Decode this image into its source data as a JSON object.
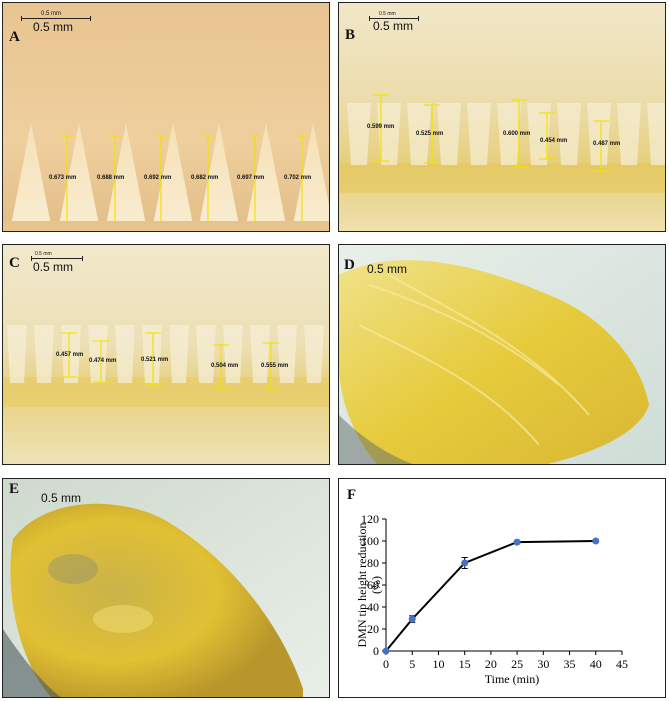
{
  "panels": {
    "A": {
      "letter": "A",
      "scale_small": "0.5 mm",
      "scale_big": "0.5 mm",
      "measurements": [
        "0.673 mm",
        "0.688 mm",
        "0.692 mm",
        "0.682 mm",
        "0.697 mm",
        "0.702 mm"
      ]
    },
    "B": {
      "letter": "B",
      "scale_small": "0.5 mm",
      "scale_big": "0.5 mm",
      "measurements": [
        "0.599 mm",
        "0.525 mm",
        "0.600 mm",
        "0.454 mm",
        "0.487 mm"
      ]
    },
    "C": {
      "letter": "C",
      "scale_small": "0.5 mm",
      "scale_big": "0.5 mm",
      "measurements": [
        "0.457 mm",
        "0.474 mm",
        "0.521 mm",
        "0.504 mm",
        "0.555 mm"
      ]
    },
    "D": {
      "letter": "D",
      "scale_big": "0.5 mm"
    },
    "E": {
      "letter": "E",
      "scale_big": "0.5 mm"
    },
    "F": {
      "letter": "F"
    }
  },
  "chart_data": {
    "type": "line",
    "x": [
      0,
      5,
      15,
      25,
      40
    ],
    "values": [
      0,
      29,
      80,
      99,
      100
    ],
    "errors": [
      0,
      3,
      5,
      1,
      1
    ],
    "xlabel": "Time (min)",
    "ylabel": "DMN tip height reduction (%)",
    "ylabel_lines": [
      "DMN tip height reduction",
      "(%)"
    ],
    "xlim": [
      0,
      45
    ],
    "ylim": [
      0,
      120
    ],
    "xticks": [
      0,
      5,
      10,
      15,
      20,
      25,
      30,
      35,
      40,
      45
    ],
    "yticks": [
      0,
      20,
      40,
      60,
      80,
      100,
      120
    ],
    "grid": false,
    "colors": {
      "line": "#000000",
      "marker": "#4472c4"
    }
  }
}
